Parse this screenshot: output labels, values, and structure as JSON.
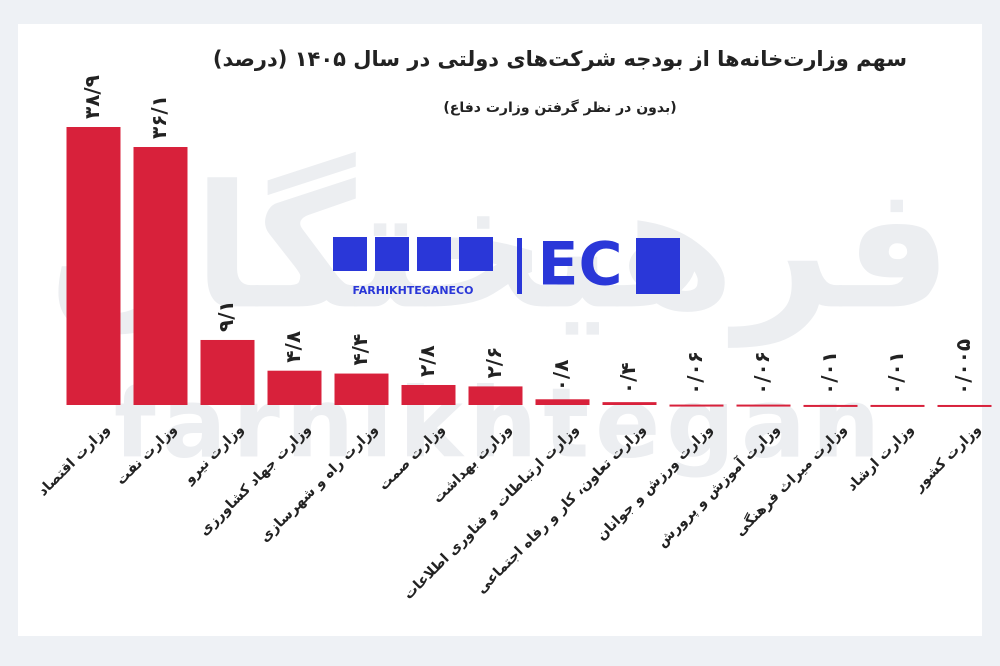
{
  "chart_data": {
    "type": "bar",
    "title": "سهم وزارت‌خانه‌ها از بودجه شرکت‌های دولتی در سال ۱۴۰۵ (درصد)",
    "subtitle": "(بدون در نظر گرفتن وزارت دفاع)",
    "categories": [
      "وزارت اقتصاد",
      "وزارت نفت",
      "وزارت نیرو",
      "وزارت جهاد کشاورزی",
      "وزارت راه و شهرسازی",
      "وزارت صمت",
      "وزارت بهداشت",
      "وزارت ارتباطات و فناوری اطلاعات",
      "وزارت تعاون، کار و رفاه اجتماعی",
      "وزارت ورزش و جوانان",
      "وزارت آموزش و پرورش",
      "وزارت میراث فرهنگی",
      "وزارت ارشاد",
      "وزارت کشور"
    ],
    "values": [
      38.9,
      36.1,
      9.1,
      4.8,
      4.4,
      2.8,
      2.6,
      0.8,
      0.4,
      0.06,
      0.06,
      0.01,
      0.01,
      0.005
    ],
    "value_labels": [
      "۳۸/۹",
      "۳۶/۱",
      "۹/۱",
      "۴/۸",
      "۴/۴",
      "۲/۸",
      "۲/۶",
      "۰/۸",
      "۰/۴",
      "۰/۰۶",
      "۰/۰۶",
      "۰/۰۱",
      "۰/۰۱",
      "۰/۰۰۵"
    ],
    "color": "#d8213b",
    "watermark": "فرهیختگان",
    "watermark_latin": "farhikhtegan",
    "logo_text": "FARHIKHTEGANECO",
    "logo_mark": "EC"
  }
}
